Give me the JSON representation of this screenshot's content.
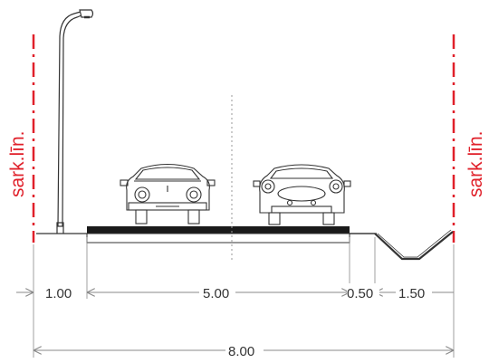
{
  "colors": {
    "boundary": "#e0202a",
    "line": "#333333",
    "road": "#1a1a1a",
    "dim": "#888888"
  },
  "labels": {
    "boundary_left": "sark.līn.",
    "boundary_right": "sark.līn."
  },
  "dimensions": {
    "sidewalk": "1.00",
    "carriageway": "5.00",
    "shoulder": "0.50",
    "ditch": "1.50",
    "total": "8.00"
  },
  "icons": {
    "lamp": "street-lamp-icon",
    "car_front": "car-front-icon",
    "car_rear": "car-rear-icon"
  }
}
